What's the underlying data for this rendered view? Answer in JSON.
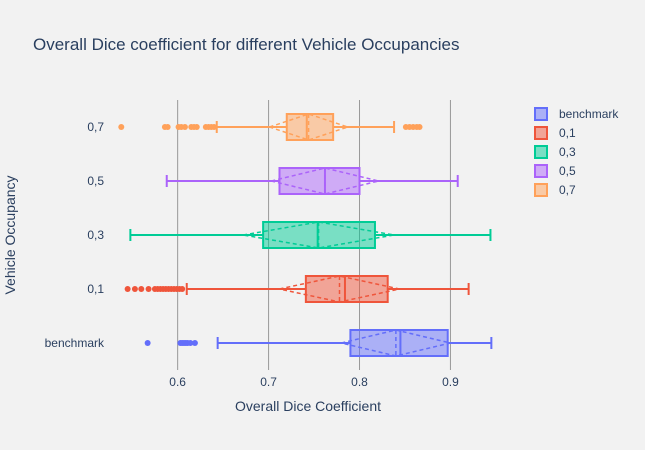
{
  "chart_data": {
    "type": "box",
    "orientation": "horizontal",
    "title": "Overall Dice coefficient for different Vehicle Occupancies",
    "xlabel": "Overall Dice Coefficient",
    "ylabel": "Vehicle Occupancy",
    "xlim": [
      0.53,
      0.96
    ],
    "xticks": [
      0.6,
      0.7,
      0.8,
      0.9
    ],
    "xtick_labels": [
      "0.6",
      "0.7",
      "0.8",
      "0.9"
    ],
    "grid": "vertical",
    "legend_position": "right",
    "series": [
      {
        "name": "benchmark",
        "category": "benchmark",
        "color": "#636efa",
        "q1": 0.79,
        "median": 0.845,
        "q3": 0.897,
        "mean": 0.84,
        "sd": 0.06,
        "lowerfence": 0.644,
        "upperfence": 0.945,
        "outliers": [
          0.567,
          0.603,
          0.605,
          0.607,
          0.609,
          0.611,
          0.614,
          0.619
        ]
      },
      {
        "name": "0,1",
        "category": "0,1",
        "color": "#ef553b",
        "q1": 0.741,
        "median": 0.784,
        "q3": 0.831,
        "mean": 0.778,
        "sd": 0.066,
        "lowerfence": 0.61,
        "upperfence": 0.92,
        "outliers": [
          0.545,
          0.553,
          0.56,
          0.568,
          0.575,
          0.578,
          0.581,
          0.584,
          0.587,
          0.59,
          0.593,
          0.596,
          0.599,
          0.602,
          0.605
        ]
      },
      {
        "name": "0,3",
        "category": "0,3",
        "color": "#00cc96",
        "q1": 0.694,
        "median": 0.754,
        "q3": 0.817,
        "mean": 0.755,
        "sd": 0.083,
        "lowerfence": 0.548,
        "upperfence": 0.944,
        "outliers": []
      },
      {
        "name": "0,5",
        "category": "0,5",
        "color": "#ab63fa",
        "q1": 0.712,
        "median": 0.762,
        "q3": 0.8,
        "mean": 0.762,
        "sd": 0.059,
        "lowerfence": 0.588,
        "upperfence": 0.908,
        "outliers": []
      },
      {
        "name": "0,7",
        "category": "0,7",
        "color": "#ffa15a",
        "q1": 0.72,
        "median": 0.742,
        "q3": 0.771,
        "mean": 0.744,
        "sd": 0.043,
        "lowerfence": 0.643,
        "upperfence": 0.838,
        "outliers": [
          0.538,
          0.586,
          0.589,
          0.601,
          0.604,
          0.608,
          0.615,
          0.618,
          0.621,
          0.631,
          0.634,
          0.637,
          0.64,
          0.851,
          0.855,
          0.859,
          0.863,
          0.866
        ]
      }
    ]
  }
}
